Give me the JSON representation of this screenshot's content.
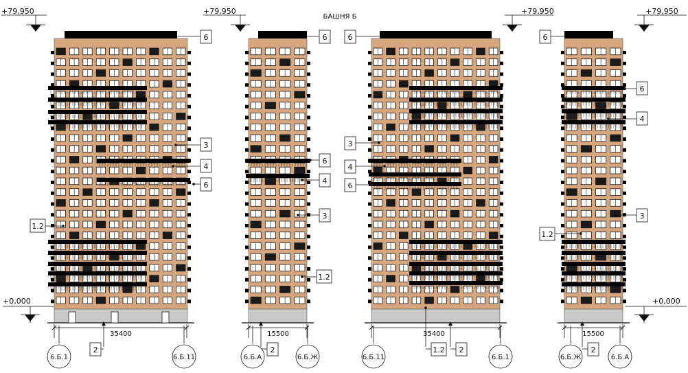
{
  "title": "БАШНЯ Б",
  "levels": {
    "top": "+79,950",
    "ground": "+0,000"
  },
  "colors": {
    "facade": "#d6a67e",
    "band": "#000000",
    "window": "#1a1a1a",
    "glass": "#ffffff",
    "plinth": "#c8c8c8",
    "line": "#111111"
  },
  "elevations": [
    {
      "top_level": "+79,950",
      "ground_level": "+0,000",
      "dimension": "35400",
      "axes": [
        "6.Б.1",
        "6.Б.11"
      ],
      "tags": [
        "6",
        "3",
        "4",
        "6",
        "1.2",
        "2"
      ]
    },
    {
      "top_level": "+79,950",
      "dimension": "15500",
      "axes": [
        "6.Б.А",
        "6.Б.Ж"
      ],
      "tags": [
        "6",
        "6",
        "4",
        "3",
        "1.2",
        "2"
      ]
    },
    {
      "top_level": "+79,950",
      "dimension": "35400",
      "axes": [
        "6.Б.11",
        "6.Б.1"
      ],
      "tags": [
        "6",
        "3",
        "4",
        "6",
        "1.2",
        "2"
      ]
    },
    {
      "top_level": "+79,950",
      "ground_level": "+0,000",
      "dimension": "15500",
      "axes": [
        "6.Б.Ж",
        "6.Б.А"
      ],
      "tags": [
        "6",
        "6",
        "4",
        "1.2",
        "3",
        "2"
      ]
    }
  ]
}
